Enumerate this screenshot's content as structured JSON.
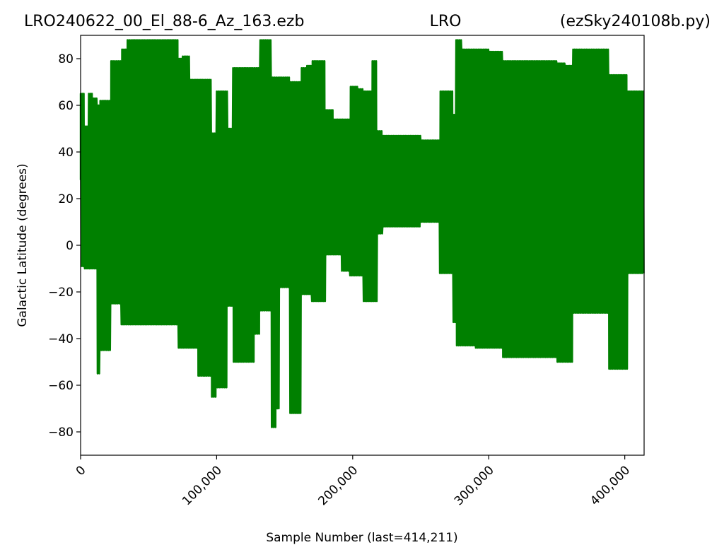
{
  "chart_data": {
    "type": "line",
    "title_left": "LRO240622_00_El_88-6_Az_163.ezb",
    "title_center": "LRO",
    "title_right": "(ezSky240108b.py)",
    "xlabel": "Sample Number (last=414,211)",
    "ylabel": "Galactic Latitude (degrees)",
    "xlim": [
      0,
      414211
    ],
    "ylim": [
      -90,
      90
    ],
    "x_ticks": [
      0,
      100000,
      200000,
      300000,
      400000
    ],
    "x_tick_labels": [
      "0",
      "100,000",
      "200,000",
      "300,000",
      "400,000"
    ],
    "y_ticks": [
      -80,
      -60,
      -40,
      -20,
      0,
      20,
      40,
      60,
      80
    ],
    "y_tick_labels": [
      "−80",
      "−60",
      "−40",
      "−20",
      "0",
      "20",
      "40",
      "60",
      "80"
    ],
    "line_color": "#008000",
    "grid": false,
    "series": [
      {
        "x": [
          0,
          3000,
          6000,
          9000,
          12000,
          14000,
          18000,
          22000,
          26000,
          30000,
          34000,
          38000,
          44000,
          50000,
          56000,
          62000,
          68000,
          72000,
          75000,
          80000,
          86000,
          92000,
          96000,
          100000,
          104000,
          108000,
          112000,
          118000,
          124000,
          128000,
          132000,
          136000,
          140000,
          144000,
          146000,
          150000,
          154000,
          158000,
          162000,
          166000,
          170000,
          175000,
          180000,
          186000,
          192000,
          198000,
          204000,
          208000,
          214000,
          218000,
          222000,
          230000,
          240000,
          250000,
          258000,
          264000,
          270000,
          274000,
          276000,
          280000,
          290000,
          300000,
          310000,
          320000,
          330000,
          340000,
          350000,
          356000,
          362000,
          370000,
          380000,
          388000,
          396000,
          402000,
          408000,
          414211
        ],
        "y_max": [
          65,
          51,
          65,
          63,
          60,
          62,
          62,
          79,
          79,
          84,
          88,
          88,
          88,
          88,
          88,
          88,
          88,
          80,
          81,
          71,
          71,
          71,
          48,
          66,
          66,
          50,
          76,
          76,
          76,
          76,
          88,
          88,
          72,
          72,
          72,
          72,
          70,
          70,
          76,
          77,
          79,
          79,
          58,
          54,
          54,
          68,
          67,
          66,
          79,
          49,
          47,
          47,
          47,
          45,
          45,
          66,
          66,
          56,
          88,
          84,
          84,
          83,
          79,
          79,
          79,
          79,
          78,
          77,
          84,
          84,
          84,
          73,
          73,
          66,
          66,
          65
        ],
        "y_min": [
          -9,
          -10,
          -10,
          -10,
          -55,
          -45,
          -45,
          -25,
          -25,
          -34,
          -34,
          -34,
          -34,
          -34,
          -34,
          -34,
          -34,
          -44,
          -44,
          -44,
          -56,
          -56,
          -65,
          -61,
          -61,
          -26,
          -50,
          -50,
          -50,
          -38,
          -28,
          -28,
          -78,
          -70,
          -18,
          -18,
          -72,
          -72,
          -21,
          -21,
          -24,
          -24,
          -4,
          -4,
          -11,
          -13,
          -13,
          -24,
          -24,
          5,
          8,
          8,
          8,
          10,
          10,
          -12,
          -12,
          -33,
          -43,
          -43,
          -44,
          -44,
          -48,
          -48,
          -48,
          -48,
          -50,
          -50,
          -29,
          -29,
          -29,
          -53,
          -53,
          -12,
          -12,
          -12
        ]
      }
    ]
  }
}
